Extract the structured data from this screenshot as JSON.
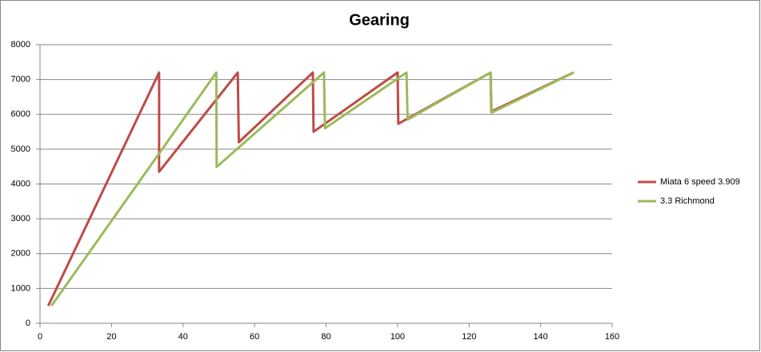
{
  "chart_data": {
    "type": "line",
    "title": "Gearing",
    "series": [
      {
        "name": "Miata 6 speed 3.909",
        "color": "#be4b48",
        "x": [
          2.3,
          33.3,
          33.3,
          55.3,
          55.6,
          76.3,
          76.5,
          100,
          100.2,
          126,
          126.2,
          149.2
        ],
        "values": [
          500,
          7200,
          4350,
          7200,
          5200,
          7200,
          5500,
          7200,
          5730,
          7200,
          6080,
          7200
        ]
      },
      {
        "name": "3.3 Richmond",
        "color": "#9bbb59",
        "x": [
          3.2,
          49.3,
          49.4,
          79.4,
          79.7,
          102.5,
          102.8,
          126,
          126.3,
          149.3
        ],
        "values": [
          500,
          7200,
          4490,
          7200,
          5600,
          7200,
          5850,
          7200,
          6050,
          7200
        ]
      }
    ],
    "xlim": [
      0,
      160
    ],
    "xticks": [
      0,
      20,
      40,
      60,
      80,
      100,
      120,
      140,
      160
    ],
    "ylim": [
      0,
      8000
    ],
    "yticks": [
      0,
      1000,
      2000,
      3000,
      4000,
      5000,
      6000,
      7000,
      8000
    ],
    "grid": true,
    "legend": "right"
  }
}
